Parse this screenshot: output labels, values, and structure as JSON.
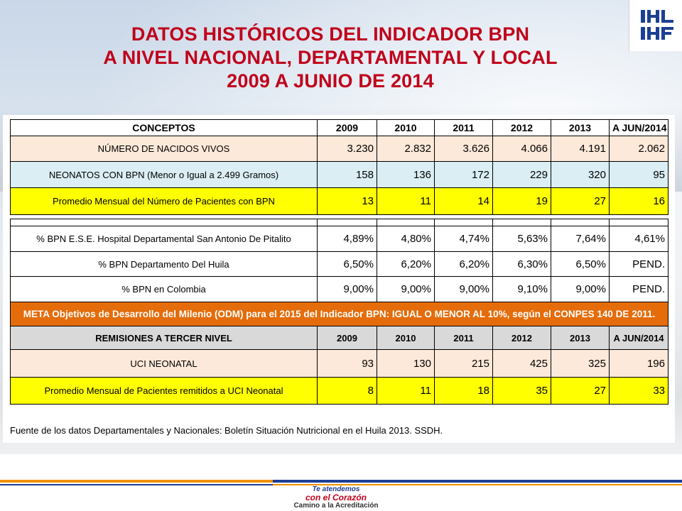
{
  "title": {
    "line1": "DATOS HISTÓRICOS DEL INDICADOR BPN",
    "line2": "A NIVEL NACIONAL, DEPARTAMENTAL Y LOCAL",
    "line3": "2009 A JUNIO DE 2014"
  },
  "logo": {
    "text": "IHF"
  },
  "table1": {
    "headers": [
      "CONCEPTOS",
      "2009",
      "2010",
      "2011",
      "2012",
      "2013",
      "A JUN/2014"
    ],
    "rows": [
      {
        "label": "NÚMERO DE NACIDOS VIVOS",
        "values": [
          "3.230",
          "2.832",
          "3.626",
          "4.066",
          "4.191",
          "2.062"
        ]
      },
      {
        "label": "NEONATOS CON BPN (Menor o Igual a  2.499 Gramos)",
        "values": [
          "158",
          "136",
          "172",
          "229",
          "320",
          "95"
        ]
      },
      {
        "label": "Promedio Mensual del Número de Pacientes con BPN",
        "values": [
          "13",
          "11",
          "14",
          "19",
          "27",
          "16"
        ]
      }
    ]
  },
  "table2": {
    "rows": [
      {
        "label": "% BPN E.S.E. Hospital Departamental San Antonio De Pitalito",
        "values": [
          "4,89%",
          "4,80%",
          "4,74%",
          "5,63%",
          "7,64%",
          "4,61%"
        ]
      },
      {
        "label": "% BPN Departamento Del Huila",
        "values": [
          "6,50%",
          "6,20%",
          "6,20%",
          "6,30%",
          "6,50%",
          "PEND."
        ]
      },
      {
        "label": "% BPN en Colombia",
        "values": [
          "9,00%",
          "9,00%",
          "9,00%",
          "9,10%",
          "9,00%",
          "PEND."
        ]
      }
    ],
    "meta": "META Objetivos de Desarrollo del Milenio (ODM) para el 2015 del Indicador BPN: IGUAL O MENOR AL 10%, según el CONPES 140 DE 2011.",
    "remisiones_headers": [
      "REMISIONES A TERCER NIVEL",
      "2009",
      "2010",
      "2011",
      "2012",
      "2013",
      "A JUN/2014"
    ],
    "remisiones_rows": [
      {
        "label": "UCI NEONATAL",
        "values": [
          "93",
          "130",
          "215",
          "425",
          "325",
          "196"
        ]
      },
      {
        "label": "Promedio Mensual de Pacientes remitidos a UCI Neonatal",
        "values": [
          "8",
          "11",
          "18",
          "35",
          "27",
          "33"
        ]
      }
    ]
  },
  "source": "Fuente de los datos Departamentales y Nacionales: Boletín Situación Nutricional en el Huila 2013. SSDH.",
  "footer": {
    "line1": "Te atendemos",
    "line2": "con el Corazón",
    "line3": "Camino a la Acreditación"
  },
  "colors": {
    "title": "#c0001a",
    "peach": "#fde9d9",
    "blue": "#daeef3",
    "yellow": "#ffff00",
    "orange": "#e46c0a",
    "gray": "#d9d9d9"
  }
}
